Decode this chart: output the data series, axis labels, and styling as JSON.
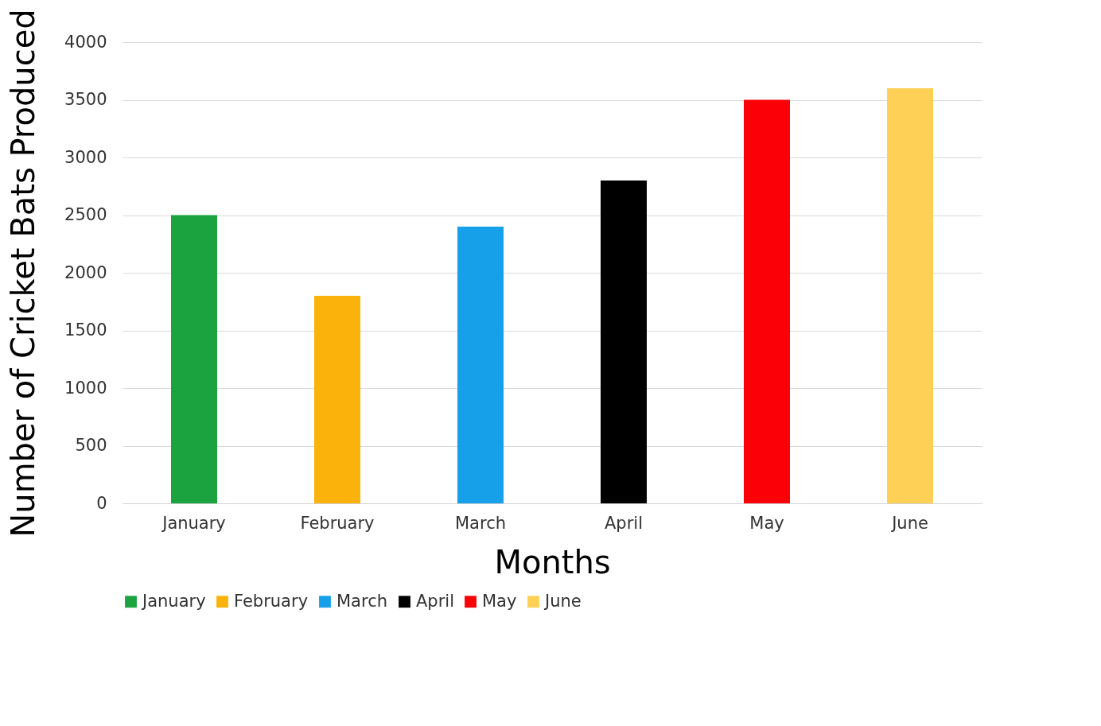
{
  "chart_data": {
    "type": "bar",
    "xlabel": "Months",
    "ylabel": "Number of Cricket Bats Produced",
    "categories": [
      "January",
      "February",
      "March",
      "April",
      "May",
      "June"
    ],
    "series": [
      {
        "name": "January",
        "color": "#1aa33f",
        "values": [
          2500,
          null,
          null,
          null,
          null,
          null
        ]
      },
      {
        "name": "February",
        "color": "#fbb20b",
        "values": [
          null,
          1800,
          null,
          null,
          null,
          null
        ]
      },
      {
        "name": "March",
        "color": "#16a0e9",
        "values": [
          null,
          null,
          2400,
          null,
          null,
          null
        ]
      },
      {
        "name": "April",
        "color": "#000000",
        "values": [
          null,
          null,
          null,
          2800,
          null,
          null
        ]
      },
      {
        "name": "May",
        "color": "#fb0007",
        "values": [
          null,
          null,
          null,
          null,
          3500,
          null
        ]
      },
      {
        "name": "June",
        "color": "#fed156",
        "values": [
          null,
          null,
          null,
          null,
          null,
          3600
        ]
      }
    ],
    "ylim": [
      0,
      4000
    ],
    "yticks": [
      0,
      500,
      1000,
      1500,
      2000,
      2500,
      3000,
      3500,
      4000
    ],
    "grid": "y",
    "legend": "bottom"
  }
}
